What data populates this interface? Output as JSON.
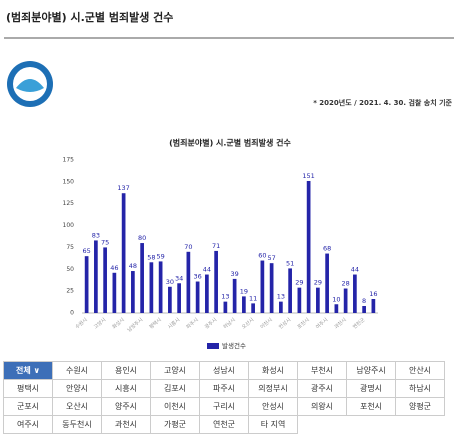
{
  "header": {
    "title": "(범죄분야별) 시.군별 범죄발생 건수",
    "note": "* 2020년도 / 2021. 4. 30. 검찰 송치 기준"
  },
  "chart_data": {
    "type": "bar",
    "title": "(범죄분야별) 시.군별 범죄발생 건수",
    "categories": [
      "수원시",
      null,
      "고양시",
      null,
      "화성시",
      null,
      "남양주시",
      null,
      "평택시",
      null,
      "시흥시",
      null,
      "파주시",
      null,
      "광주시",
      null,
      "하남시",
      null,
      "오산시",
      null,
      "이천시",
      null,
      "안성시",
      null,
      "포천시",
      null,
      "여주시",
      null,
      "과천시",
      null,
      "연천군",
      null
    ],
    "series": [
      {
        "name": "발생건수",
        "color": "#2424a8",
        "values": [
          65,
          83,
          75,
          46,
          137,
          48,
          80,
          58,
          59,
          30,
          34,
          70,
          36,
          44,
          71,
          13,
          39,
          19,
          11,
          60,
          57,
          13,
          51,
          29,
          151,
          29,
          68,
          10,
          28,
          44,
          8,
          16
        ]
      }
    ],
    "ylim": [
      0,
      175
    ],
    "yticks": [
      0,
      25,
      50,
      75,
      100,
      125,
      150,
      175
    ],
    "grid": false,
    "legend": "bottom"
  },
  "table": {
    "rows": [
      [
        "전체 ∨",
        "수원시",
        "용인시",
        "고양시",
        "성남시",
        "화성시",
        "부천시",
        "남양주시",
        "안산시"
      ],
      [
        "평택시",
        "안양시",
        "시흥시",
        "김포시",
        "파주시",
        "의정부시",
        "광주시",
        "광명시",
        "하남시"
      ],
      [
        "군포시",
        "오산시",
        "양주시",
        "이천시",
        "구리시",
        "안성시",
        "의왕시",
        "포천시",
        "양평군"
      ],
      [
        "여주시",
        "동두천시",
        "과천시",
        "가평군",
        "연천군",
        "타 지역"
      ]
    ]
  }
}
